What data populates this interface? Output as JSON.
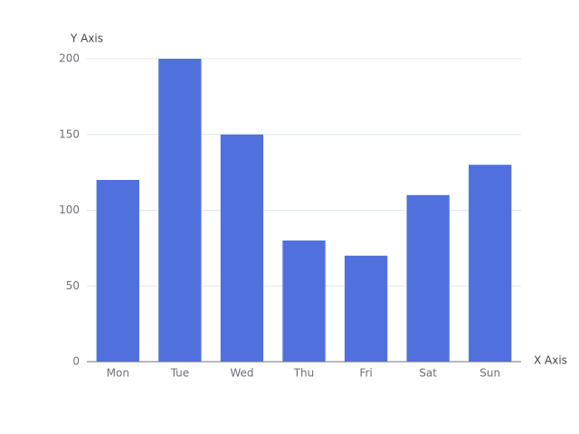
{
  "chart_data": {
    "type": "bar",
    "x_label": "X Axis",
    "y_label": "Y Axis",
    "categories": [
      "Mon",
      "Tue",
      "Wed",
      "Thu",
      "Fri",
      "Sat",
      "Sun"
    ],
    "values": [
      120,
      200,
      150,
      80,
      70,
      110,
      130
    ],
    "color": "#5070dd",
    "ylim": [
      0,
      200
    ],
    "yticks": [
      0,
      50,
      100,
      150,
      200
    ],
    "grid": true
  }
}
